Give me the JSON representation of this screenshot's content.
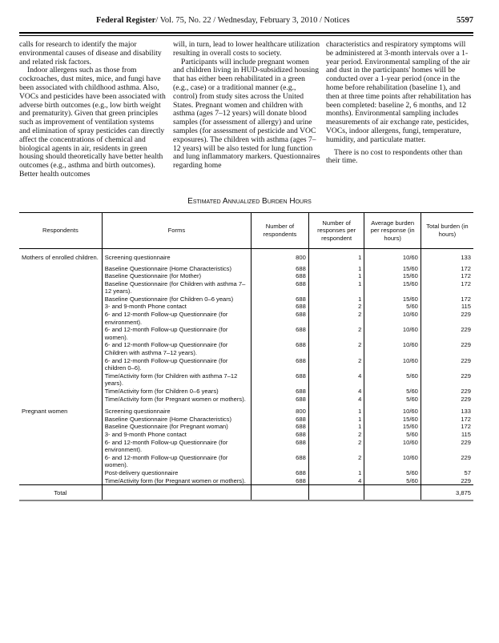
{
  "header": {
    "publication": "Federal Register",
    "issue": "/ Vol. 75, No. 22 / Wednesday, February 3, 2010 / Notices",
    "page_number": "5597"
  },
  "body_columns": [
    [
      {
        "text": "calls for research to identify the major environmental causes of disease and disability and related risk factors.",
        "indent": false
      },
      {
        "text": "Indoor allergens such as those from cockroaches, dust mites, mice, and fungi have been associated with childhood asthma. Also, VOCs and pesticides have been associated with adverse birth outcomes (e.g., low birth weight and prematurity). Given that green principles such as improvement of ventilation systems and elimination of spray pesticides can directly affect the concentrations of chemical and biological agents in air, residents in green housing should theoretically have better health outcomes (e.g., asthma and birth outcomes). Better health outcomes",
        "indent": true
      }
    ],
    [
      {
        "text": "will, in turn, lead to lower healthcare utilization resulting in overall costs to society.",
        "indent": false
      },
      {
        "text": "Participants will include pregnant women and children living in HUD-subsidized housing that has either been rehabilitated in a green (e.g., case) or a traditional manner (e.g., control) from study sites across the United States. Pregnant women and children with asthma (ages 7–12 years) will donate blood samples (for assessment of allergy) and urine samples (for assessment of pesticide and VOC exposures). The children with asthma (ages 7–12 years) will be also tested for lung function and lung inflammatory markers. Questionnaires regarding home",
        "indent": true
      }
    ],
    [
      {
        "text": "characteristics and respiratory symptoms will be administered at 3-month intervals over a 1-year period. Environmental sampling of the air and dust in the participants' homes will be conducted over a 1-year period (once in the home before rehabilitation (baseline 1), and then at three time points after rehabilitation has been completed: baseline 2, 6 months, and 12 months). Environmental sampling includes measurements of air exchange rate, pesticides, VOCs, indoor allergens, fungi, temperature, humidity, and particulate matter.",
        "indent": false
      },
      {
        "text": "There is no cost to respondents other than their time.",
        "indent": true
      }
    ]
  ],
  "table": {
    "title": "Estimated Annualized Burden Hours",
    "columns": [
      "Respondents",
      "Forms",
      "Number of respondents",
      "Number of responses per respondent",
      "Average burden per response (in hours)",
      "Total burden (in hours)"
    ],
    "groups": [
      {
        "respondent": "Mothers of enrolled children.",
        "rows": [
          [
            "Screening questionnaire",
            "800",
            "1",
            "10/60",
            "133"
          ],
          [
            "Baseline Questionnaire (Home Characteristics)",
            "688",
            "1",
            "15/60",
            "172"
          ],
          [
            "Baseline Questionnaire (for Mother)",
            "688",
            "1",
            "15/60",
            "172"
          ],
          [
            "Baseline Questionnaire (for Children with asthma 7–12 years).",
            "688",
            "1",
            "15/60",
            "172"
          ],
          [
            "Baseline Questionnaire (for Children 0–6 years)",
            "688",
            "1",
            "15/60",
            "172"
          ],
          [
            "3- and 9-month Phone contact",
            "688",
            "2",
            "5/60",
            "115"
          ],
          [
            "6- and 12-month Follow-up Questionnaire (for environment).",
            "688",
            "2",
            "10/60",
            "229"
          ],
          [
            "6- and 12-month Follow-up Questionnaire (for women).",
            "688",
            "2",
            "10/60",
            "229"
          ],
          [
            "6- and 12-month Follow-up Questionnaire (for Children with asthma 7–12 years).",
            "688",
            "2",
            "10/60",
            "229"
          ],
          [
            "6- and 12-month Follow-up Questionnaire (for children 0–6).",
            "688",
            "2",
            "10/60",
            "229"
          ],
          [
            "Time/Activity form (for Children with asthma 7–12 years).",
            "688",
            "4",
            "5/60",
            "229"
          ],
          [
            "Time/Activity form (for Children 0–6 years)",
            "688",
            "4",
            "5/60",
            "229"
          ],
          [
            "Time/Activity form (for Pregnant women or mothers).",
            "688",
            "4",
            "5/60",
            "229"
          ]
        ]
      },
      {
        "respondent": "Pregnant women",
        "rows": [
          [
            "Screening questionnaire",
            "800",
            "1",
            "10/60",
            "133"
          ],
          [
            "Baseline Questionnaire (Home Characteristics)",
            "688",
            "1",
            "15/60",
            "172"
          ],
          [
            "Baseline Questionnaire (for Pregnant woman)",
            "688",
            "1",
            "15/60",
            "172"
          ],
          [
            "3- and 9-month Phone contact",
            "688",
            "2",
            "5/60",
            "115"
          ],
          [
            "6- and 12-month Follow-up Questionnaire (for environment).",
            "688",
            "2",
            "10/60",
            "229"
          ],
          [
            "6- and 12-month Follow-up Questionnaire (for women).",
            "688",
            "2",
            "10/60",
            "229"
          ],
          [
            "Post-delivery questionnaire",
            "688",
            "1",
            "5/60",
            "57"
          ],
          [
            "Time/Activity form (for Pregnant women or mothers).",
            "688",
            "4",
            "5/60",
            "229"
          ]
        ]
      }
    ],
    "total": {
      "label": "Total",
      "value": "3,875"
    }
  }
}
